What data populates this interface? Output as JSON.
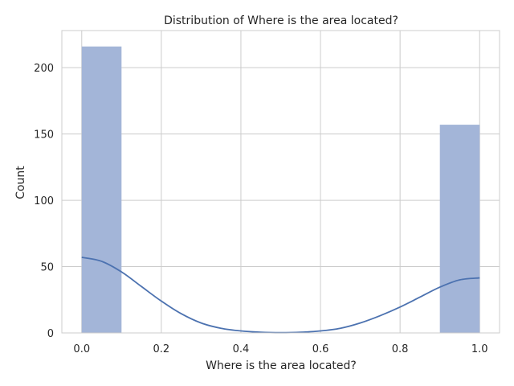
{
  "chart_data": {
    "type": "bar",
    "title": "Distribution of Where is the area located?",
    "xlabel": "Where is the area located?",
    "ylabel": "Count",
    "xlim": [
      -0.05,
      1.05
    ],
    "ylim": [
      0,
      228
    ],
    "xticks": [
      "0.0",
      "0.2",
      "0.4",
      "0.6",
      "0.8",
      "1.0"
    ],
    "yticks": [
      "0",
      "50",
      "100",
      "150",
      "200"
    ],
    "grid": true,
    "bins": [
      {
        "x0": 0.0,
        "x1": 0.1,
        "count": 216
      },
      {
        "x0": 0.9,
        "x1": 1.0,
        "count": 157
      }
    ],
    "kde": {
      "x": [
        0.0,
        0.05,
        0.1,
        0.15,
        0.2,
        0.25,
        0.3,
        0.35,
        0.4,
        0.45,
        0.5,
        0.55,
        0.6,
        0.65,
        0.7,
        0.75,
        0.8,
        0.85,
        0.9,
        0.95,
        1.0
      ],
      "y": [
        57,
        54,
        46,
        35,
        24,
        14.5,
        7.5,
        3.5,
        1.5,
        0.5,
        0.2,
        0.5,
        1.5,
        3.5,
        7.5,
        13,
        19.5,
        27,
        34.5,
        40,
        41.5
      ]
    },
    "bar_color": "#a3b5d8",
    "line_color": "#4c72b0"
  }
}
